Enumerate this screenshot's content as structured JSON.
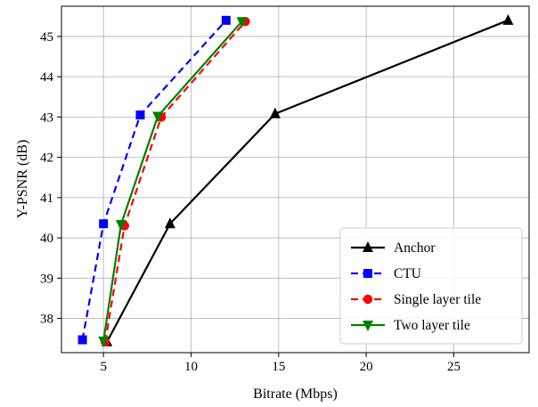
{
  "chart_data": {
    "type": "line",
    "title": "",
    "xlabel": "Bitrate (Mbps)",
    "ylabel": "Y-PSNR (dB)",
    "xlim": [
      2.6,
      29.3
    ],
    "ylim": [
      37.15,
      45.75
    ],
    "xticks": [
      5,
      10,
      15,
      20,
      25
    ],
    "yticks": [
      38,
      39,
      40,
      41,
      42,
      43,
      44,
      45
    ],
    "xtick_labels": [
      "5",
      "10",
      "15",
      "20",
      "25"
    ],
    "ytick_labels": [
      "38",
      "39",
      "40",
      "41",
      "42",
      "43",
      "44",
      "45"
    ],
    "grid": true,
    "legend_position": "lower-right",
    "series": [
      {
        "name": "Anchor",
        "color": "#000000",
        "line_style": "solid",
        "marker": "triangle-up",
        "x": [
          5.2,
          8.8,
          14.8,
          28.1
        ],
        "y": [
          37.42,
          40.35,
          43.08,
          45.4
        ]
      },
      {
        "name": "CTU",
        "color": "#0000ff",
        "line_style": "dashed",
        "marker": "square",
        "x": [
          3.8,
          5.0,
          7.1,
          12.0
        ],
        "y": [
          37.47,
          40.35,
          43.05,
          45.4
        ]
      },
      {
        "name": "Single layer tile",
        "color": "#ff0000",
        "line_style": "dashed",
        "marker": "circle",
        "x": [
          5.1,
          6.2,
          8.3,
          13.1
        ],
        "y": [
          37.42,
          40.3,
          43.0,
          45.37
        ]
      },
      {
        "name": "Two layer tile",
        "color": "#008000",
        "line_style": "solid",
        "marker": "triangle-down",
        "x": [
          5.0,
          6.0,
          8.1,
          12.9
        ],
        "y": [
          37.44,
          40.33,
          43.02,
          45.37
        ]
      }
    ]
  }
}
